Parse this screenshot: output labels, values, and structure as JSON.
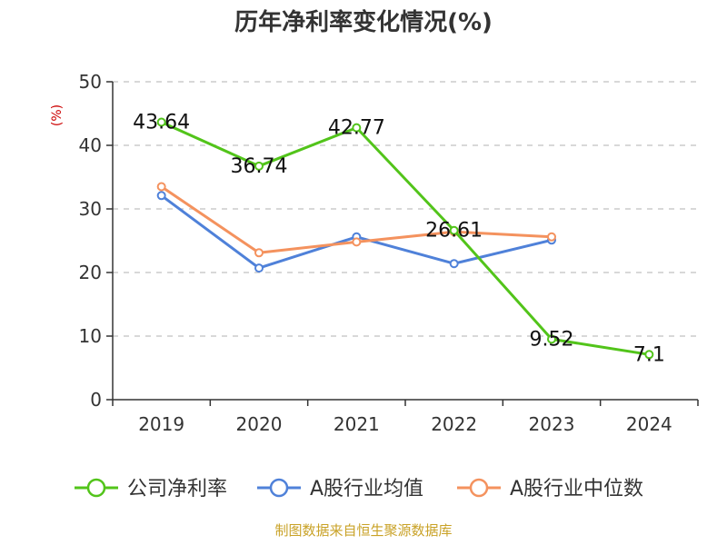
{
  "chart_data": {
    "type": "line",
    "title": "历年净利率变化情况(%)",
    "ylabel": "(%)",
    "xlabel": "",
    "categories": [
      "2019",
      "2020",
      "2021",
      "2022",
      "2023",
      "2024"
    ],
    "y_ticks": [
      "0",
      "10",
      "20",
      "30",
      "40",
      "50"
    ],
    "ylim": [
      0,
      50
    ],
    "grid": true,
    "legend_position": "bottom",
    "series": [
      {
        "name": "公司净利率",
        "color": "#52c41a",
        "values": [
          43.64,
          36.74,
          42.77,
          26.61,
          9.52,
          7.1
        ],
        "labels": [
          "43.64",
          "36.74",
          "42.77",
          "26.61",
          "9.52",
          "7.1"
        ]
      },
      {
        "name": "A股行业均值",
        "color": "#4f81d9",
        "values": [
          32.1,
          20.7,
          25.6,
          21.4,
          25.1,
          null
        ]
      },
      {
        "name": "A股行业中位数",
        "color": "#f4925e",
        "values": [
          33.5,
          23.1,
          24.8,
          26.4,
          25.6,
          null
        ]
      }
    ]
  },
  "source_text": "制图数据来自恒生聚源数据库",
  "colors": {
    "unit_label": "#cc0000",
    "source_text": "#c9a227",
    "axis": "#333333",
    "grid": "#cccccc"
  }
}
